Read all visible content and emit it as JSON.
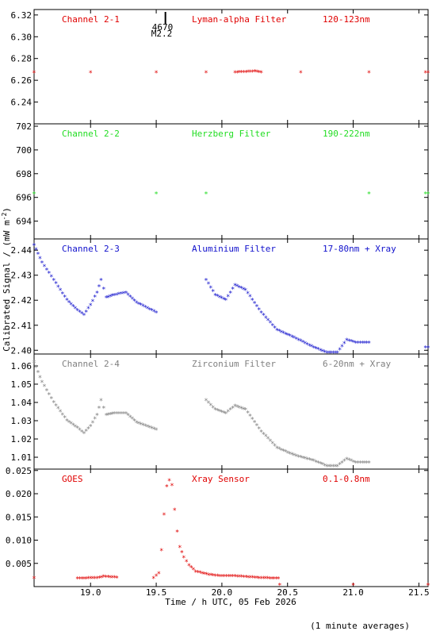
{
  "figure": {
    "ylabel": "Calibrated Signal / (mW m",
    "ylabel_sup": "-2",
    "ylabel_close": ")",
    "xlabel": "Time / h UTC, 05 Feb 2026",
    "footnote": "(1 minute averages)",
    "flare_marker": {
      "time": 19.57,
      "number": "4670",
      "class": "M2.2"
    }
  },
  "x_axis": {
    "min": 18.57,
    "max": 21.57,
    "ticks": [
      "19.0",
      "19.5",
      "20.0",
      "20.5",
      "21.0",
      "21.5"
    ]
  },
  "panels": [
    {
      "channel": "Channel 2-1",
      "filter": "Lyman-alpha Filter",
      "band": "120-123nm",
      "color": "#e00000",
      "ylim": [
        6.22,
        6.325
      ],
      "yticks": [
        "6.24",
        "6.26",
        "6.28",
        "6.30",
        "6.32"
      ]
    },
    {
      "channel": "Channel 2-2",
      "filter": "Herzberg Filter",
      "band": "190-222nm",
      "color": "#22dd22",
      "ylim": [
        692.5,
        702.2
      ],
      "yticks": [
        "694",
        "696",
        "698",
        "700",
        "702"
      ]
    },
    {
      "channel": "Channel 2-3",
      "filter": "Aluminium Filter",
      "band": "17-80nm + Xray",
      "color": "#1010cc",
      "ylim": [
        2.3985,
        2.4445
      ],
      "yticks": [
        "2.40",
        "2.41",
        "2.42",
        "2.43",
        "2.44"
      ]
    },
    {
      "channel": "Channel 2-4",
      "filter": "Zirconium Filter",
      "band": "6-20nm + Xray",
      "color": "#808080",
      "ylim": [
        1.0035,
        1.0665
      ],
      "yticks": [
        "1.01",
        "1.02",
        "1.03",
        "1.04",
        "1.05",
        "1.06"
      ]
    },
    {
      "channel": "GOES",
      "filter": "Xray Sensor",
      "band": "0.1-0.8nm",
      "color": "#e00000",
      "ylim": [
        0.0,
        0.0253
      ],
      "yticks": [
        "0.005",
        "0.010",
        "0.015",
        "0.020",
        "0.025"
      ]
    }
  ],
  "chart_data": [
    {
      "type": "scatter",
      "title": "Channel 2-1",
      "xlabel": "Time / h UTC, 05 Feb 2026",
      "ylim": [
        6.22,
        6.325
      ],
      "series": [
        {
          "name": "Lyman-alpha Filter",
          "color": "#e00000",
          "x": [
            18.57,
            19.0,
            19.5,
            19.88,
            20.1,
            20.25,
            20.3,
            20.6,
            21.12,
            21.55,
            21.57
          ],
          "y": [
            6.267,
            6.267,
            6.267,
            6.267,
            6.267,
            6.268,
            6.267,
            6.267,
            6.267,
            6.267,
            6.267
          ]
        }
      ]
    },
    {
      "type": "scatter",
      "title": "Channel 2-2",
      "xlabel": "Time / h UTC, 05 Feb 2026",
      "ylim": [
        692.5,
        702.2
      ],
      "series": [
        {
          "name": "Herzberg Filter",
          "color": "#22dd22",
          "x": [
            18.57,
            19.5,
            19.88,
            21.12,
            21.55,
            21.57
          ],
          "y": [
            696.3,
            696.3,
            696.3,
            696.3,
            696.3,
            696.3
          ]
        }
      ]
    },
    {
      "type": "scatter",
      "title": "Channel 2-3",
      "xlabel": "Time / h UTC, 05 Feb 2026",
      "ylim": [
        2.3985,
        2.4445
      ],
      "series": [
        {
          "name": "Aluminium Filter",
          "color": "#1010cc",
          "x": [
            18.57,
            18.63,
            18.72,
            18.82,
            18.9,
            18.95,
            19.0,
            19.05,
            19.08,
            19.12,
            19.18,
            19.27,
            19.35,
            19.5,
            19.88,
            19.95,
            20.03,
            20.1,
            20.18,
            20.3,
            20.42,
            20.55,
            20.7,
            20.8,
            20.88,
            20.95,
            21.02,
            21.12,
            21.55,
            21.57
          ],
          "y": [
            2.442,
            2.435,
            2.428,
            2.42,
            2.416,
            2.414,
            2.418,
            2.423,
            2.428,
            2.421,
            2.422,
            2.423,
            2.419,
            2.415,
            2.428,
            2.422,
            2.42,
            2.426,
            2.424,
            2.415,
            2.408,
            2.405,
            2.401,
            2.399,
            2.399,
            2.404,
            2.403,
            2.403,
            2.401,
            2.401
          ]
        }
      ]
    },
    {
      "type": "scatter",
      "title": "Channel 2-4",
      "xlabel": "Time / h UTC, 05 Feb 2026",
      "ylim": [
        1.0035,
        1.0665
      ],
      "series": [
        {
          "name": "Zirconium Filter",
          "color": "#808080",
          "x": [
            18.57,
            18.63,
            18.72,
            18.82,
            18.9,
            18.95,
            19.0,
            19.05,
            19.08,
            19.12,
            19.18,
            19.27,
            19.35,
            19.5,
            19.88,
            19.95,
            20.03,
            20.1,
            20.18,
            20.3,
            20.42,
            20.55,
            20.7,
            20.8,
            20.88,
            20.95,
            21.02,
            21.12
          ],
          "y": [
            1.062,
            1.051,
            1.04,
            1.03,
            1.026,
            1.023,
            1.027,
            1.033,
            1.041,
            1.033,
            1.034,
            1.034,
            1.029,
            1.025,
            1.041,
            1.036,
            1.034,
            1.038,
            1.036,
            1.024,
            1.015,
            1.011,
            1.008,
            1.005,
            1.005,
            1.009,
            1.007,
            1.007
          ]
        }
      ]
    },
    {
      "type": "scatter",
      "title": "GOES",
      "xlabel": "Time / h UTC, 05 Feb 2026",
      "ylim": [
        0.0,
        0.0253
      ],
      "series": [
        {
          "name": "Xray Sensor",
          "color": "#e00000",
          "x": [
            18.57,
            18.9,
            19.05,
            19.1,
            19.2,
            19.48,
            19.52,
            19.54,
            19.56,
            19.58,
            19.6,
            19.62,
            19.64,
            19.66,
            19.68,
            19.71,
            19.75,
            19.8,
            19.9,
            20.0,
            20.1,
            20.3,
            20.43,
            20.44,
            21.0,
            21.57
          ],
          "y": [
            0.0018,
            0.0017,
            0.0018,
            0.0021,
            0.0019,
            0.0018,
            0.0028,
            0.0078,
            0.0155,
            0.0215,
            0.0228,
            0.0218,
            0.0165,
            0.0118,
            0.0085,
            0.0062,
            0.0045,
            0.0032,
            0.0025,
            0.0022,
            0.0022,
            0.0018,
            0.0017,
            0.0003,
            0.0003,
            0.0003
          ]
        }
      ]
    }
  ]
}
